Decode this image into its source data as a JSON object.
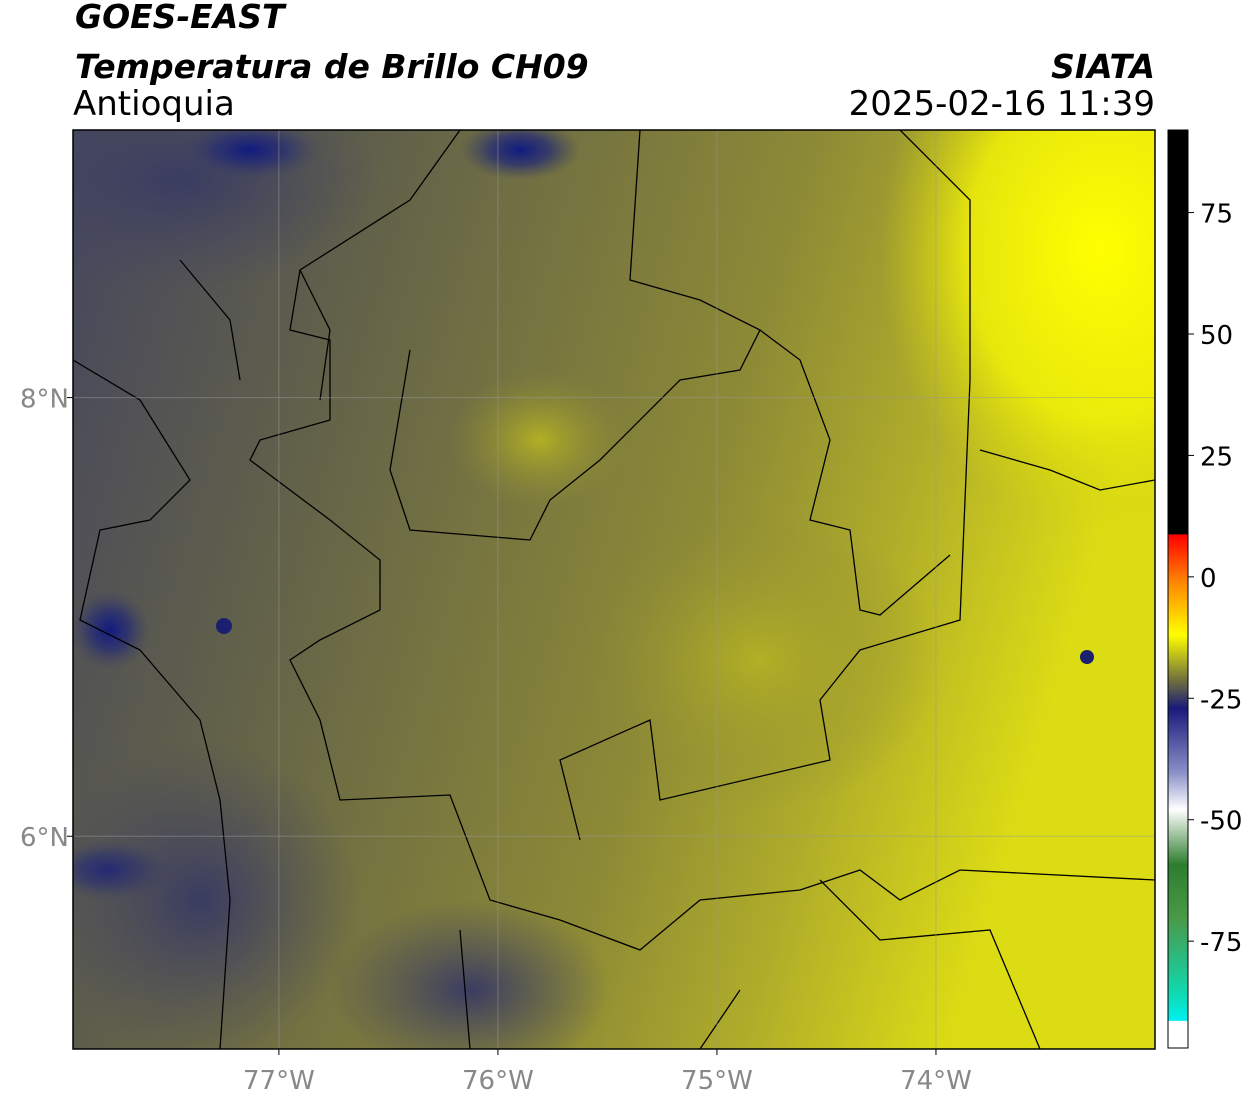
{
  "header": {
    "title": "GOES-EAST",
    "subtitle": "Temperatura de Brillo CH09",
    "region": "Antioquia",
    "source": "SIATA",
    "datetime": "2025-02-16 11:39"
  },
  "map": {
    "xlim": [
      -77.94,
      -73.0
    ],
    "ylim": [
      5.03,
      9.22
    ],
    "xticks": [
      {
        "value": -77,
        "label": "77°W"
      },
      {
        "value": -76,
        "label": "76°W"
      },
      {
        "value": -75,
        "label": "75°W"
      },
      {
        "value": -74,
        "label": "74°W"
      }
    ],
    "yticks": [
      {
        "value": 8,
        "label": "8°N"
      },
      {
        "value": 6,
        "label": "6°N"
      }
    ],
    "grid": true
  },
  "colorbar": {
    "lim": [
      -97,
      92
    ],
    "ticks": [
      75,
      50,
      25,
      0,
      -25,
      -50,
      -75
    ]
  }
}
